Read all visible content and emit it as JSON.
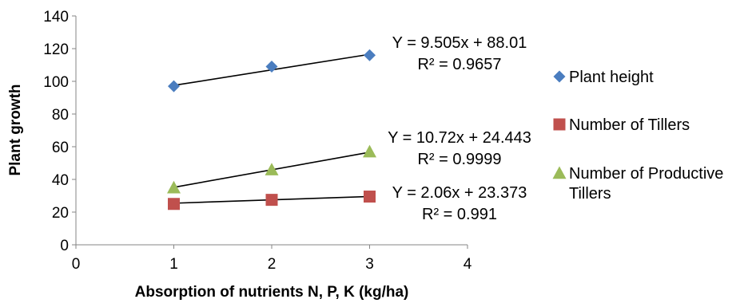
{
  "chart_data": {
    "type": "scatter",
    "xlabel": "Absorption of nutrients N, P, K (kg/ha)",
    "ylabel": "Plant growth",
    "xlim": [
      0,
      4
    ],
    "ylim": [
      0,
      140
    ],
    "x_ticks": [
      "0",
      "1",
      "2",
      "3",
      "4"
    ],
    "y_ticks": [
      "0",
      "20",
      "40",
      "60",
      "80",
      "100",
      "120",
      "140"
    ],
    "grid": false,
    "legend_position": "right",
    "series": [
      {
        "name": "Plant height",
        "marker": "diamond",
        "color": "#4a7dbf",
        "x": [
          1,
          2,
          3
        ],
        "y": [
          97,
          109,
          116
        ],
        "trend": {
          "slope": 9.505,
          "intercept": 88.01,
          "equation": "Y = 9.505x + 88.01",
          "r2": "R² = 0.9657"
        }
      },
      {
        "name": "Number of Tillers",
        "marker": "square",
        "color": "#c0504d",
        "x": [
          1,
          2,
          3
        ],
        "y": [
          25,
          27.5,
          29.5
        ],
        "trend": {
          "slope": 2.06,
          "intercept": 23.373,
          "equation": "Y = 2.06x + 23.373",
          "r2": "R² = 0.991"
        }
      },
      {
        "name": "Number of Productive Tillers",
        "name_lines": [
          "Number of Productive",
          "Tillers"
        ],
        "marker": "triangle",
        "color": "#9bbb59",
        "x": [
          1,
          2,
          3
        ],
        "y": [
          35,
          46,
          57
        ],
        "trend": {
          "slope": 10.72,
          "intercept": 24.443,
          "equation": "Y = 10.72x + 24.443",
          "r2": "R² = 0.9999"
        }
      }
    ]
  }
}
